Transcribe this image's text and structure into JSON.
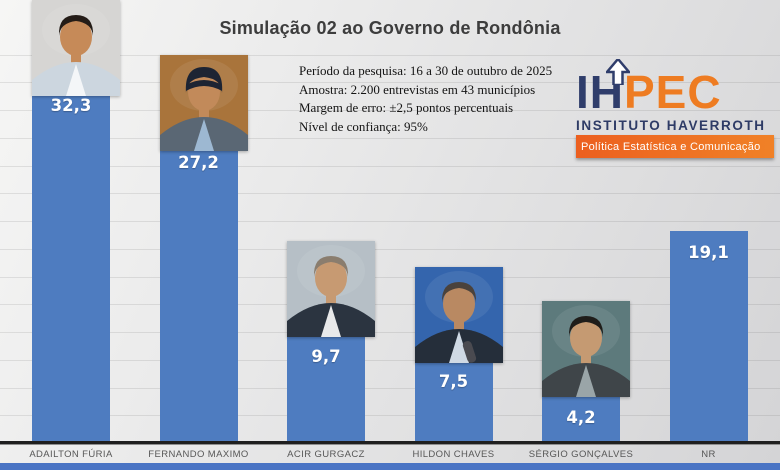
{
  "title": "Simulação 02 ao Governo de Rondônia",
  "survey_info": {
    "line1": "Período da pesquisa: 16 a 30 de outubro de 2025",
    "line2": "Amostra: 2.200 entrevistas em 43 municípios",
    "line3": "Margem de erro: ±2,5 pontos percentuais",
    "line4": "Nível de confiança: 95%"
  },
  "logo": {
    "acronym_left": "IH",
    "acronym_right": "PEC",
    "institute": "INSTITUTO HAVERROTH",
    "tagline": "Política Estatística e Comunicação",
    "colors": {
      "navy": "#2f3d6b",
      "orange": "#ee7c22",
      "banner_bg": "#ef7b27",
      "tagline_text": "#ffffff"
    }
  },
  "chart_data": {
    "type": "bar",
    "title": "Simulação 02 ao Governo de Rondônia",
    "categories": [
      "ADAILTON FÚRIA",
      "FERNANDO MAXIMO",
      "ACIR GURGACZ",
      "HILDON CHAVES",
      "SÉRGIO GONÇALVES",
      "NR"
    ],
    "values": [
      32.3,
      27.2,
      9.7,
      7.5,
      4.2,
      19.1
    ],
    "value_labels": [
      "32,3",
      "27,2",
      "9,7",
      "7,5",
      "4,2",
      "19,1"
    ],
    "bar_color": "#4e7cc0",
    "value_label_color": "#ffffff",
    "ylim": [
      0,
      35
    ],
    "gridline_step": 2.5,
    "grid": true,
    "legend_position": "none",
    "portraits": [
      {
        "present": true,
        "bg": "#d6d5d3",
        "skin": "#c68a58",
        "hair": "#241c17",
        "jacket": "#ccd6df",
        "shirt": "#f4f6f8",
        "cap": false,
        "mic": false
      },
      {
        "present": true,
        "bg": "#a9743b",
        "skin": "#c28a5a",
        "hair": "#1d2433",
        "jacket": "#5a6774",
        "shirt": "#9db8d2",
        "cap": true,
        "mic": false
      },
      {
        "present": true,
        "bg": "#b6bfc6",
        "skin": "#c79a72",
        "hair": "#8a7d6e",
        "jacket": "#2b3440",
        "shirt": "#e8e9ea",
        "cap": false,
        "mic": false
      },
      {
        "present": true,
        "bg": "#3465ad",
        "skin": "#b98962",
        "hair": "#4a423c",
        "jacket": "#252e3a",
        "shirt": "#cfd9e4",
        "cap": false,
        "mic": true
      },
      {
        "present": true,
        "bg": "#5d7a7c",
        "skin": "#c59a72",
        "hair": "#1f1d1a",
        "jacket": "#3f4549",
        "shirt": "#9aa5a8",
        "cap": false,
        "mic": false
      },
      {
        "present": false
      }
    ]
  }
}
